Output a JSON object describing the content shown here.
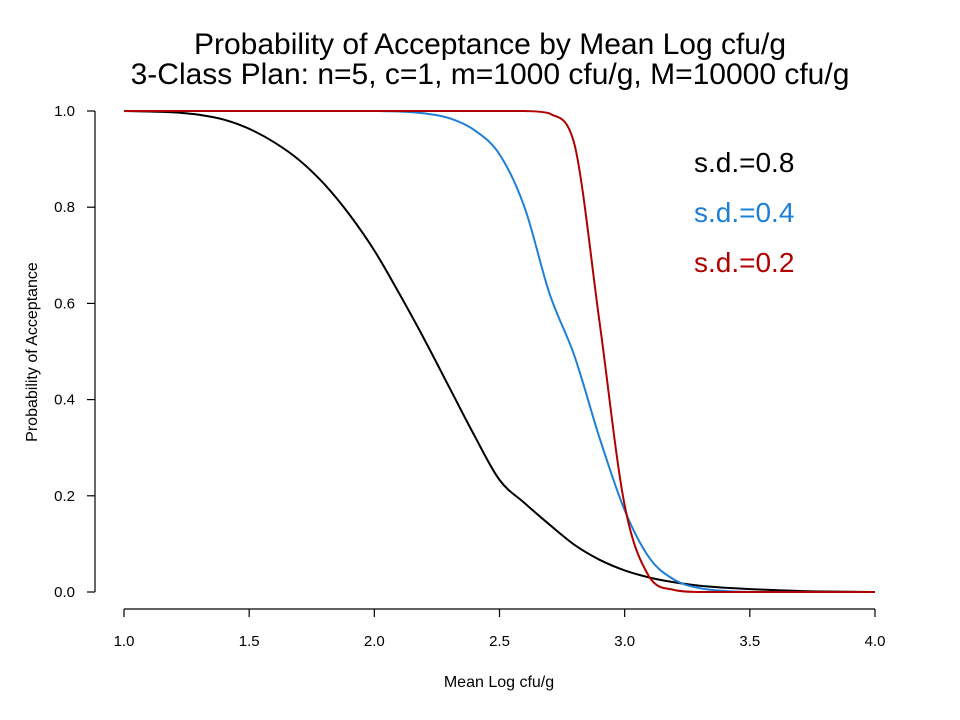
{
  "chart_data": {
    "type": "line",
    "title": "Probability of Acceptance by Mean Log cfu/g",
    "subtitle": "3-Class Plan: n=5, c=1, m=1000 cfu/g, M=10000 cfu/g",
    "xlabel": "Mean Log cfu/g",
    "ylabel": "Probability of Acceptance",
    "xlim": [
      1.0,
      4.0
    ],
    "ylim": [
      0.0,
      1.0
    ],
    "xticks": [
      "1.0",
      "1.5",
      "2.0",
      "2.5",
      "3.0",
      "3.5",
      "4.0"
    ],
    "yticks": [
      "0.0",
      "0.2",
      "0.4",
      "0.6",
      "0.8",
      "1.0"
    ],
    "grid": false,
    "legend_placement": "top-right",
    "x": [
      1.0,
      1.1,
      1.2,
      1.3,
      1.4,
      1.5,
      1.6,
      1.7,
      1.8,
      1.9,
      2.0,
      2.1,
      2.2,
      2.3,
      2.4,
      2.5,
      2.6,
      2.7,
      2.8,
      2.9,
      3.0,
      3.1,
      3.2,
      3.3,
      3.4,
      3.5,
      3.6,
      3.7,
      3.8,
      3.9,
      4.0
    ],
    "series": [
      {
        "name": "s.d.=0.8",
        "color": "#000000",
        "values": [
          1.0,
          0.999,
          0.997,
          0.992,
          0.982,
          0.963,
          0.935,
          0.898,
          0.848,
          0.785,
          0.71,
          0.62,
          0.525,
          0.425,
          0.325,
          0.233,
          0.185,
          0.14,
          0.098,
          0.067,
          0.045,
          0.03,
          0.02,
          0.013,
          0.009,
          0.006,
          0.004,
          0.002,
          0.001,
          0.0005,
          0.0
        ]
      },
      {
        "name": "s.d.=0.4",
        "color": "#1e7fd6",
        "values": [
          1.0,
          1.0,
          1.0,
          1.0,
          1.0,
          1.0,
          1.0,
          1.0,
          1.0,
          1.0,
          1.0,
          0.999,
          0.995,
          0.985,
          0.96,
          0.91,
          0.8,
          0.62,
          0.49,
          0.32,
          0.17,
          0.07,
          0.025,
          0.008,
          0.002,
          0.0,
          0.0,
          0.0,
          0.0,
          0.0,
          0.0
        ]
      },
      {
        "name": "s.d.=0.2",
        "color": "#b00000",
        "values": [
          1.0,
          1.0,
          1.0,
          1.0,
          1.0,
          1.0,
          1.0,
          1.0,
          1.0,
          1.0,
          1.0,
          1.0,
          1.0,
          1.0,
          1.0,
          1.0,
          1.0,
          0.995,
          0.93,
          0.56,
          0.18,
          0.03,
          0.004,
          0.0,
          0.0,
          0.0,
          0.0,
          0.0,
          0.0,
          0.0,
          0.0
        ]
      }
    ]
  }
}
